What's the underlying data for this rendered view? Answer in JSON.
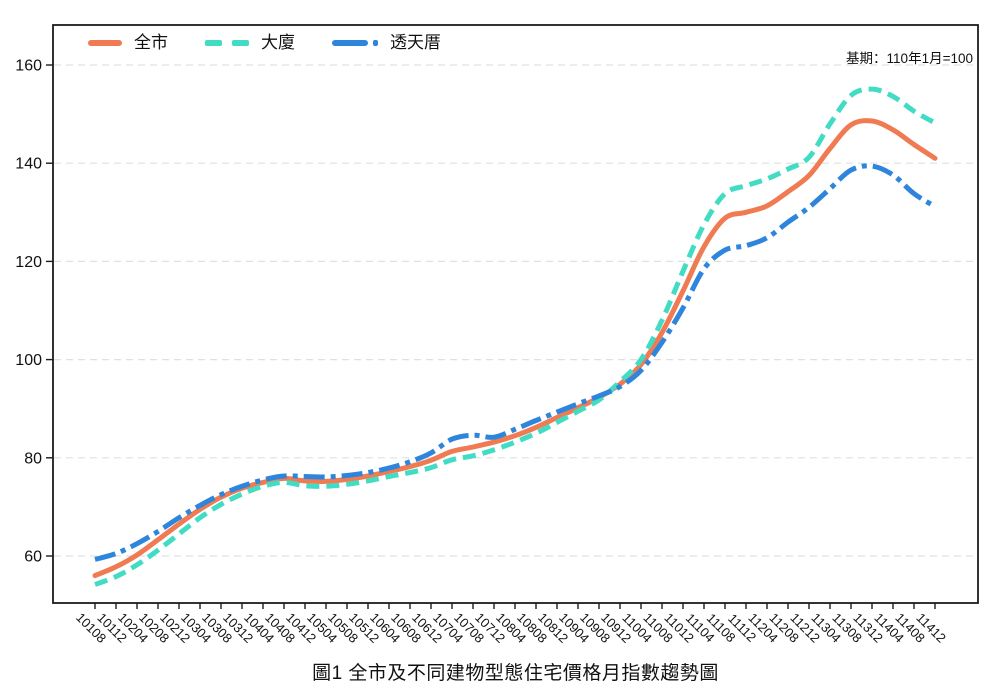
{
  "chart_data": {
    "type": "line",
    "title": "圖1 全市及不同建物型態住宅價格月指數趨勢圖",
    "note": "基期：110年1月=100",
    "xlabel": "",
    "ylabel": "",
    "ylim": [
      50,
      168
    ],
    "yticks": [
      60,
      80,
      100,
      120,
      140,
      160
    ],
    "grid": "horizontal-dashed",
    "legend_position": "top-left-inside",
    "categories": [
      "10108",
      "10112",
      "10204",
      "10208",
      "10212",
      "10304",
      "10308",
      "10312",
      "10404",
      "10408",
      "10412",
      "10504",
      "10508",
      "10512",
      "10604",
      "10608",
      "10612",
      "10704",
      "10708",
      "10712",
      "10804",
      "10808",
      "10812",
      "10904",
      "10908",
      "10912",
      "11004",
      "11008",
      "11012",
      "11104",
      "11108",
      "11112",
      "11204",
      "11208",
      "11212",
      "11304",
      "11308",
      "11312",
      "11404",
      "11408",
      "11412"
    ],
    "series": [
      {
        "name": "全市",
        "slug": "citywide",
        "color": "#F07B52",
        "style": "solid",
        "values": [
          56.0,
          57.8,
          60.2,
          63.3,
          66.5,
          69.5,
          72.0,
          73.8,
          75.0,
          75.8,
          75.3,
          75.2,
          75.6,
          76.3,
          77.2,
          78.2,
          79.5,
          81.3,
          82.2,
          83.2,
          84.5,
          86.2,
          88.2,
          90.2,
          92.3,
          95.0,
          99.0,
          105.5,
          114.0,
          123.0,
          128.8,
          130.0,
          131.3,
          134.2,
          137.5,
          143.0,
          147.8,
          148.6,
          146.8,
          143.8,
          141.0
        ]
      },
      {
        "name": "大廈",
        "slug": "apartment-building",
        "color": "#41DCC3",
        "style": "dashed",
        "values": [
          54.2,
          55.8,
          58.2,
          61.2,
          64.5,
          67.8,
          70.5,
          72.6,
          74.2,
          75.0,
          74.3,
          74.2,
          74.6,
          75.3,
          76.2,
          77.0,
          78.0,
          79.6,
          80.4,
          81.6,
          83.2,
          85.0,
          87.2,
          89.5,
          91.8,
          95.5,
          100.0,
          108.0,
          118.0,
          127.5,
          133.8,
          135.4,
          136.8,
          138.8,
          141.2,
          148.0,
          153.8,
          155.1,
          153.6,
          150.6,
          148.2
        ]
      },
      {
        "name": "透天厝",
        "slug": "townhouse",
        "color": "#2E86DC",
        "style": "dash-dot",
        "values": [
          59.3,
          60.5,
          62.5,
          65.0,
          67.8,
          70.3,
          72.5,
          74.2,
          75.5,
          76.3,
          76.2,
          76.1,
          76.4,
          77.0,
          77.9,
          79.2,
          81.0,
          83.8,
          84.6,
          84.2,
          85.8,
          87.6,
          89.3,
          91.0,
          92.6,
          94.5,
          97.8,
          103.5,
          110.5,
          118.5,
          122.3,
          123.2,
          124.8,
          128.0,
          131.0,
          134.8,
          138.6,
          139.4,
          137.6,
          133.8,
          131.2
        ]
      }
    ]
  }
}
